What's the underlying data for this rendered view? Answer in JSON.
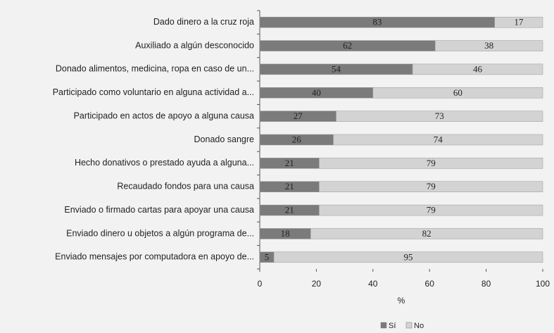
{
  "chart_data": {
    "type": "stacked_barh",
    "categories": [
      "Dado dinero a la cruz roja",
      "Auxiliado a algún desconocido",
      "Donado alimentos, medicina, ropa en caso de un...",
      "Participado como voluntario en alguna actividad a...",
      "Participado en actos de apoyo a alguna causa",
      "Donado sangre",
      "Hecho donativos o prestado ayuda a alguna...",
      "Recaudado fondos para una causa",
      "Enviado o firmado cartas para apoyar una causa",
      "Enviado dinero u objetos a algún programa de...",
      "Enviado mensajes por computadora en apoyo de..."
    ],
    "series": [
      {
        "name": "Sí",
        "color": "#7b7b7b",
        "values": [
          83,
          62,
          54,
          40,
          27,
          26,
          21,
          21,
          21,
          18,
          5
        ]
      },
      {
        "name": "No",
        "color": "#d3d3d3",
        "values": [
          17,
          38,
          46,
          60,
          73,
          74,
          79,
          79,
          79,
          82,
          95
        ]
      }
    ],
    "xlabel": "%",
    "xlim": [
      0,
      100
    ],
    "xticks": [
      0,
      20,
      40,
      60,
      80,
      100
    ],
    "legend": "bottom"
  }
}
